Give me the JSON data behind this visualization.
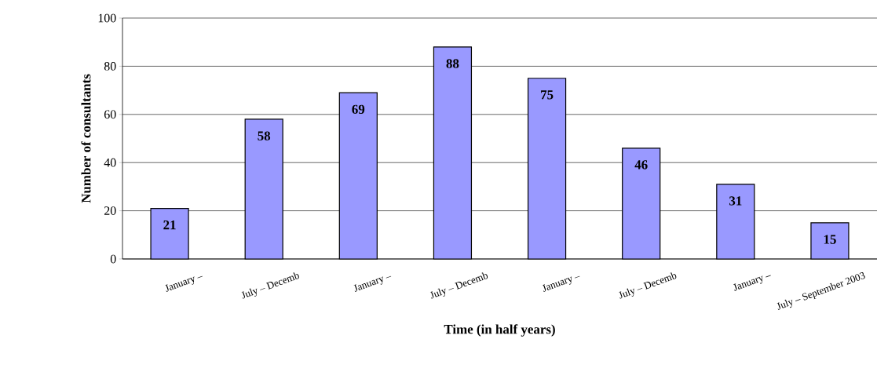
{
  "chart_data": {
    "type": "bar",
    "xlabel": "Time (in half years)",
    "ylabel": "Number of consultants",
    "categories": [
      "January – ",
      "July – Decemb",
      "January – ",
      "July – Decemb",
      "January – ",
      "July – Decemb",
      "January –",
      "July – September 2003"
    ],
    "values": [
      21,
      58,
      69,
      88,
      75,
      46,
      31,
      15
    ],
    "color": "#9999ff",
    "ylim": [
      0,
      100
    ],
    "yticks": [
      0,
      20,
      40,
      60,
      80,
      100
    ],
    "grid": "y",
    "data_labels": true
  }
}
